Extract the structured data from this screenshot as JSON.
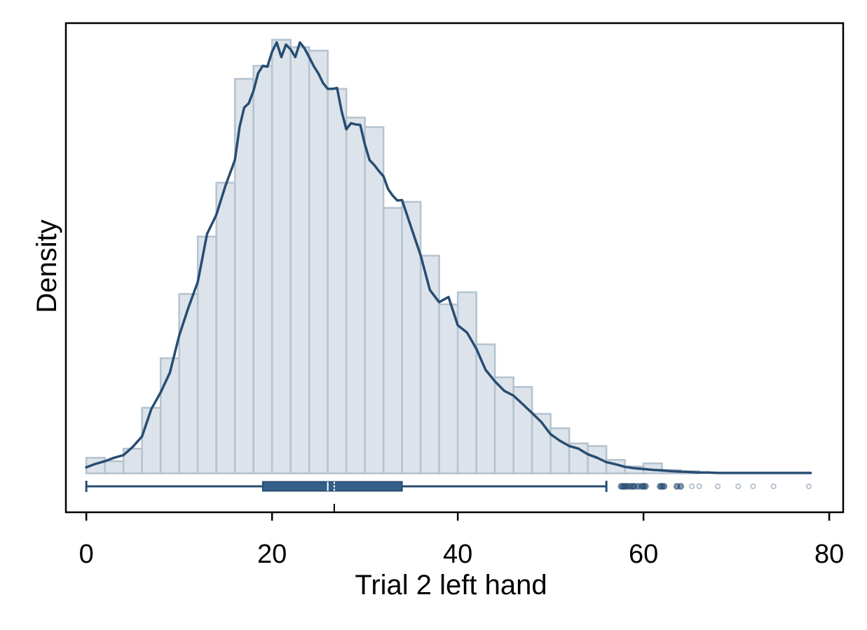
{
  "chart_data": {
    "type": "histogram",
    "title": "",
    "xlabel": "Trial 2 left hand",
    "ylabel": "Density",
    "xlim": [
      -2.2,
      81.5
    ],
    "xticks": [
      0,
      20,
      40,
      60,
      80
    ],
    "y_ticks_shown": false,
    "grid": false,
    "legend": "none",
    "bin_width": 2,
    "bins": [
      {
        "start": 0,
        "end": 2,
        "relative_height": 0.036
      },
      {
        "start": 2,
        "end": 4,
        "relative_height": 0.028
      },
      {
        "start": 4,
        "end": 6,
        "relative_height": 0.057
      },
      {
        "start": 6,
        "end": 8,
        "relative_height": 0.151
      },
      {
        "start": 8,
        "end": 10,
        "relative_height": 0.265
      },
      {
        "start": 10,
        "end": 12,
        "relative_height": 0.413
      },
      {
        "start": 12,
        "end": 14,
        "relative_height": 0.545
      },
      {
        "start": 14,
        "end": 16,
        "relative_height": 0.669
      },
      {
        "start": 16,
        "end": 18,
        "relative_height": 0.908
      },
      {
        "start": 18,
        "end": 20,
        "relative_height": 0.938
      },
      {
        "start": 20,
        "end": 22,
        "relative_height": 0.998
      },
      {
        "start": 22,
        "end": 24,
        "relative_height": 0.981
      },
      {
        "start": 24,
        "end": 26,
        "relative_height": 0.973
      },
      {
        "start": 26,
        "end": 28,
        "relative_height": 0.885
      },
      {
        "start": 28,
        "end": 30,
        "relative_height": 0.819
      },
      {
        "start": 30,
        "end": 32,
        "relative_height": 0.797
      },
      {
        "start": 32,
        "end": 34,
        "relative_height": 0.611
      },
      {
        "start": 34,
        "end": 36,
        "relative_height": 0.625
      },
      {
        "start": 36,
        "end": 38,
        "relative_height": 0.501
      },
      {
        "start": 38,
        "end": 40,
        "relative_height": 0.389
      },
      {
        "start": 40,
        "end": 42,
        "relative_height": 0.417
      },
      {
        "start": 42,
        "end": 44,
        "relative_height": 0.297
      },
      {
        "start": 44,
        "end": 46,
        "relative_height": 0.221
      },
      {
        "start": 46,
        "end": 48,
        "relative_height": 0.199
      },
      {
        "start": 48,
        "end": 50,
        "relative_height": 0.137
      },
      {
        "start": 50,
        "end": 52,
        "relative_height": 0.104
      },
      {
        "start": 52,
        "end": 54,
        "relative_height": 0.069
      },
      {
        "start": 54,
        "end": 56,
        "relative_height": 0.063
      },
      {
        "start": 56,
        "end": 58,
        "relative_height": 0.031
      },
      {
        "start": 58,
        "end": 60,
        "relative_height": 0.016
      },
      {
        "start": 60,
        "end": 62,
        "relative_height": 0.023
      },
      {
        "start": 62,
        "end": 64,
        "relative_height": 0.008
      },
      {
        "start": 64,
        "end": 66,
        "relative_height": 0.005
      }
    ],
    "density_curve": {
      "x": [
        0,
        1,
        2,
        3,
        4,
        5,
        6,
        7,
        8,
        9,
        10,
        11,
        12,
        13,
        14,
        15,
        16,
        16.5,
        17,
        17.5,
        18,
        18.5,
        19,
        19.5,
        20,
        20.5,
        21,
        21.5,
        22,
        22.5,
        23,
        23.5,
        24,
        24.5,
        25,
        25.5,
        26,
        26.5,
        27,
        27.5,
        28,
        28.5,
        29,
        29.5,
        30,
        30.5,
        31,
        31.5,
        32,
        32.5,
        33,
        33.5,
        34,
        35,
        36,
        37,
        38,
        39,
        40,
        41,
        42,
        43,
        44,
        45,
        46,
        47,
        48,
        49,
        50,
        51,
        52,
        53,
        54,
        55,
        56,
        57,
        58,
        59,
        60,
        61,
        62,
        63,
        64,
        65,
        66,
        67,
        68,
        69,
        70,
        72,
        74,
        76,
        78
      ],
      "relative_height": [
        0.014,
        0.022,
        0.028,
        0.036,
        0.042,
        0.061,
        0.085,
        0.148,
        0.186,
        0.232,
        0.317,
        0.382,
        0.44,
        0.551,
        0.595,
        0.663,
        0.721,
        0.797,
        0.842,
        0.852,
        0.88,
        0.921,
        0.938,
        0.936,
        0.97,
        0.992,
        0.958,
        0.987,
        0.976,
        0.958,
        0.992,
        0.978,
        0.958,
        0.937,
        0.92,
        0.898,
        0.885,
        0.885,
        0.887,
        0.833,
        0.792,
        0.806,
        0.803,
        0.802,
        0.757,
        0.721,
        0.71,
        0.696,
        0.684,
        0.654,
        0.639,
        0.628,
        0.629,
        0.565,
        0.502,
        0.422,
        0.394,
        0.406,
        0.341,
        0.324,
        0.287,
        0.238,
        0.212,
        0.19,
        0.179,
        0.159,
        0.139,
        0.118,
        0.09,
        0.075,
        0.063,
        0.057,
        0.044,
        0.036,
        0.026,
        0.021,
        0.015,
        0.012,
        0.01,
        0.008,
        0.007,
        0.005,
        0.004,
        0.003,
        0.002,
        0.002,
        0.001,
        0.001,
        0.001,
        0.001,
        0.001,
        0.001,
        0.001,
        0.001,
        0.001
      ]
    },
    "boxplot": {
      "whisker_low": 0,
      "q1": 19,
      "median": 26,
      "mean": 26.7,
      "q3": 34,
      "whisker_high": 56,
      "outliers": [
        57.6,
        57.8,
        58.0,
        58.2,
        58.5,
        58.8,
        59.0,
        59.4,
        59.8,
        60.0,
        60.2,
        61.8,
        62.0,
        62.2,
        63.6,
        64.0,
        65.2,
        66.0,
        68.0,
        70.2,
        71.8,
        74.0,
        77.8
      ]
    },
    "colors": {
      "bar_fill": "#dde3ea",
      "bar_stroke": "#b4c3d0",
      "curve": "#274d72",
      "box": "#345f89"
    }
  }
}
